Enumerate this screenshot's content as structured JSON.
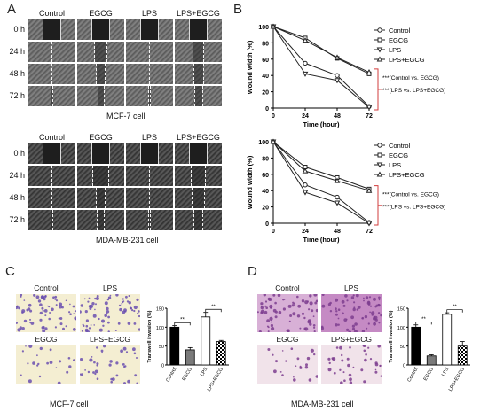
{
  "panels": {
    "A": "A",
    "B": "B",
    "C": "C",
    "D": "D"
  },
  "wound_assay": {
    "columns": [
      "Control",
      "EGCG",
      "LPS",
      "LPS+EGCG"
    ],
    "rows": [
      "0 h",
      "24 h",
      "48 h",
      "72 h"
    ],
    "top_caption": "MCF-7 cell",
    "bottom_caption": "MDA-MB-231 cell"
  },
  "invasion_images": {
    "C": {
      "labels": [
        "Control",
        "LPS",
        "EGCG",
        "LPS+EGCG"
      ],
      "caption": "MCF-7 cell"
    },
    "D": {
      "labels": [
        "Control",
        "LPS",
        "EGCG",
        "LPS+EGCG"
      ],
      "caption": "MDA-MB-231 cell"
    }
  },
  "chart_data": [
    {
      "type": "line",
      "x": [
        0,
        24,
        48,
        72
      ],
      "xlabel": "Time (hour)",
      "ylabel": "Wound width (%)",
      "xlim": [
        0,
        72
      ],
      "ylim": [
        0,
        100
      ],
      "xticks": [
        0,
        24,
        48,
        72
      ],
      "yticks": [
        0,
        20,
        40,
        60,
        80,
        100
      ],
      "legend": "top-right",
      "series": [
        {
          "name": "Control",
          "values": [
            100,
            55,
            40,
            2
          ]
        },
        {
          "name": "EGCG",
          "values": [
            100,
            86,
            61,
            42
          ]
        },
        {
          "name": "LPS",
          "values": [
            100,
            42,
            34,
            1
          ]
        },
        {
          "name": "LPS+EGCG",
          "values": [
            100,
            83,
            62,
            44
          ]
        }
      ],
      "annotations": [
        "***(Control vs. EGCG)",
        "***(LPS vs. LPS+EGCG)"
      ]
    },
    {
      "type": "line",
      "x": [
        0,
        24,
        48,
        72
      ],
      "xlabel": "Time (hour)",
      "ylabel": "Wound width (%)",
      "xlim": [
        0,
        72
      ],
      "ylim": [
        0,
        100
      ],
      "xticks": [
        0,
        24,
        48,
        72
      ],
      "yticks": [
        0,
        20,
        40,
        60,
        80,
        100
      ],
      "legend": "top-right",
      "series": [
        {
          "name": "Control",
          "values": [
            100,
            47,
            32,
            1
          ]
        },
        {
          "name": "EGCG",
          "values": [
            100,
            69,
            56,
            42
          ]
        },
        {
          "name": "LPS",
          "values": [
            100,
            38,
            25,
            0
          ]
        },
        {
          "name": "LPS+EGCG",
          "values": [
            100,
            64,
            52,
            40
          ]
        }
      ],
      "annotations": [
        "***(Control vs. EGCG)",
        "***(LPS vs. LPS+EGCG)"
      ]
    },
    {
      "type": "bar",
      "categories": [
        "Control",
        "EGCG",
        "LPS",
        "LPS+EGCG"
      ],
      "values": [
        100,
        40,
        127,
        62
      ],
      "errors": [
        4,
        6,
        12,
        3
      ],
      "colors": [
        "#000000",
        "#7a7a7a",
        "#ffffff",
        "checker"
      ],
      "ylabel": "Transwell invasion (%)",
      "ylim": [
        0,
        150
      ],
      "yticks": [
        0,
        50,
        100,
        150
      ],
      "significance": [
        "**",
        "**"
      ]
    },
    {
      "type": "bar",
      "categories": [
        "Control",
        "EGCG",
        "LPS",
        "LPS+EGCG"
      ],
      "values": [
        100,
        24,
        134,
        50
      ],
      "errors": [
        6,
        3,
        4,
        12
      ],
      "colors": [
        "#000000",
        "#7a7a7a",
        "#ffffff",
        "checker"
      ],
      "ylabel": "Transwell invasion (%)",
      "ylim": [
        0,
        150
      ],
      "yticks": [
        0,
        50,
        100,
        150
      ],
      "significance": [
        "**",
        "**"
      ]
    }
  ]
}
